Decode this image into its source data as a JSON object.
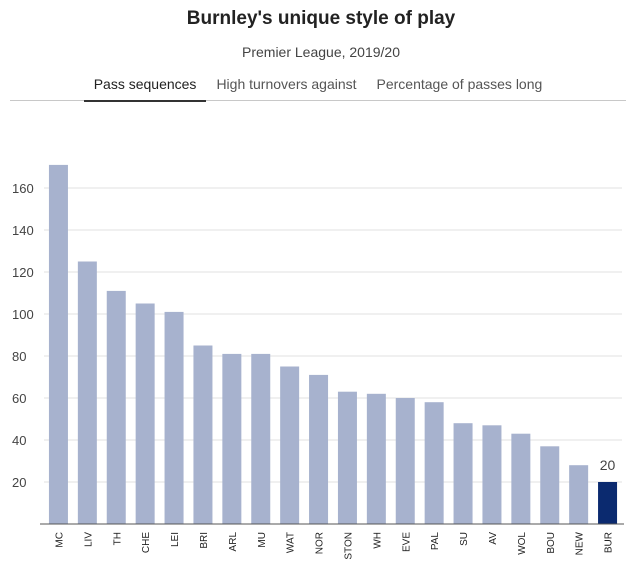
{
  "header": {
    "title": "Burnley's unique style of play",
    "subtitle": "Premier League, 2019/20"
  },
  "tabs": [
    {
      "label": "Pass sequences",
      "active": true
    },
    {
      "label": "High turnovers against",
      "active": false
    },
    {
      "label": "Percentage of passes long",
      "active": false
    }
  ],
  "colors": {
    "bar": "#a7b2ce",
    "highlight": "#0b2a6f",
    "grid": "#e2e2e2",
    "axis": "#555555"
  },
  "chart_data": {
    "type": "bar",
    "title": "",
    "xlabel": "",
    "ylabel": "",
    "categories": [
      "MC",
      "LIV",
      "TH",
      "CHE",
      "LEI",
      "BRI",
      "ARL",
      "MU",
      "WAT",
      "NOR",
      "STON",
      "WH",
      "EVE",
      "PAL",
      "SU",
      "AV",
      "WOL",
      "BOU",
      "NEW",
      "BUR"
    ],
    "values": [
      171,
      125,
      111,
      105,
      101,
      85,
      81,
      81,
      75,
      71,
      63,
      62,
      60,
      58,
      48,
      47,
      43,
      37,
      28,
      20
    ],
    "highlight_category": "BUR",
    "data_labels": [
      {
        "category": "BUR",
        "text": "20"
      }
    ],
    "ylim": [
      0,
      180
    ],
    "yticks": [
      20,
      40,
      60,
      80,
      100,
      120,
      140,
      160
    ],
    "grid": true
  }
}
